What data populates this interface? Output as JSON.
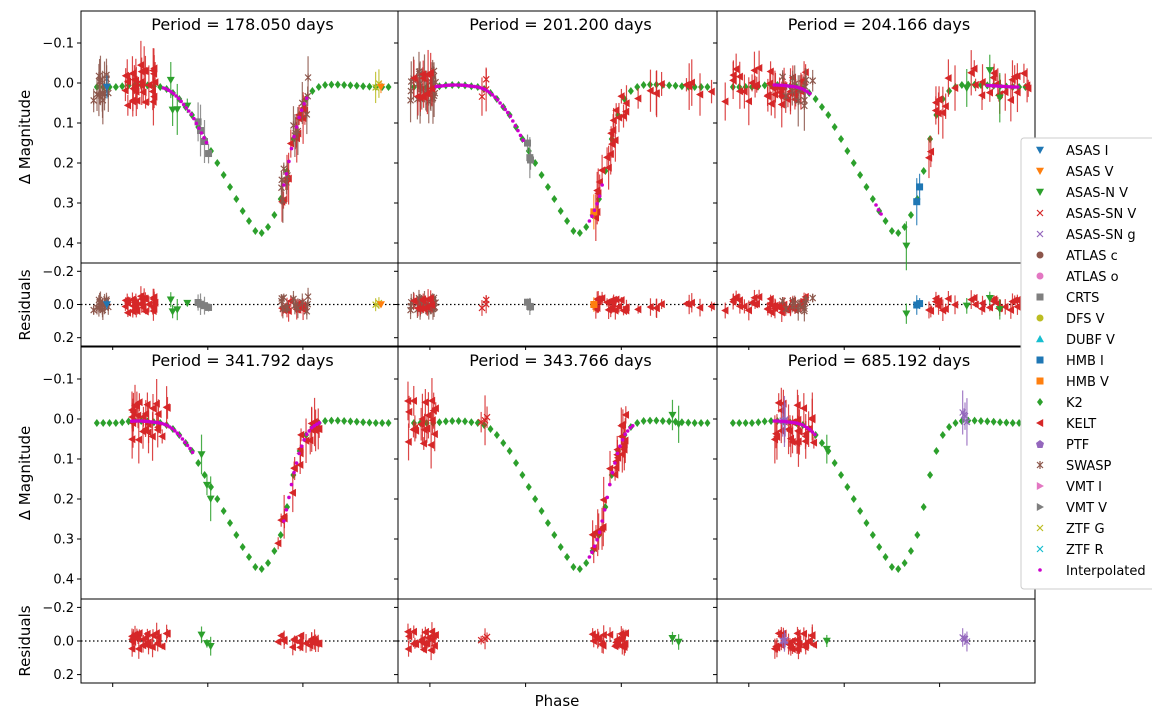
{
  "chart_data": {
    "type": "scatter",
    "xlabel": "Phase",
    "ylabel_main": "Δ Magnitude",
    "ylabel_residual": "Residuals",
    "main_yticks": [
      "−0.1",
      "0.0",
      "0.1",
      "0.2",
      "0.3",
      "0.4"
    ],
    "main_ytick_values": [
      -0.1,
      0.0,
      0.1,
      0.2,
      0.3,
      0.4
    ],
    "main_ylim": [
      0.45,
      -0.18
    ],
    "residual_yticks": [
      "−0.2",
      "0.0",
      "0.2"
    ],
    "residual_ytick_values": [
      -0.2,
      0.0,
      0.2
    ],
    "residual_ylim": [
      0.25,
      -0.25
    ],
    "xlim": [
      0.0,
      1.0
    ],
    "xtick_positions": [
      0.1,
      0.4,
      0.7
    ],
    "k2_template": {
      "phase": [
        0.05,
        0.07,
        0.09,
        0.11,
        0.13,
        0.15,
        0.17,
        0.19,
        0.21,
        0.23,
        0.25,
        0.27,
        0.29,
        0.31,
        0.33,
        0.35,
        0.37,
        0.39,
        0.41,
        0.43,
        0.45,
        0.47,
        0.49,
        0.51,
        0.53,
        0.55,
        0.57,
        0.59,
        0.61,
        0.63,
        0.65,
        0.67,
        0.69,
        0.71,
        0.73,
        0.75,
        0.77,
        0.79,
        0.81,
        0.83,
        0.85,
        0.87,
        0.89,
        0.91,
        0.93,
        0.95,
        0.97
      ],
      "mag": [
        0.01,
        0.01,
        0.01,
        0.01,
        0.008,
        0.006,
        0.005,
        0.005,
        0.006,
        0.008,
        0.01,
        0.015,
        0.025,
        0.04,
        0.06,
        0.08,
        0.11,
        0.14,
        0.17,
        0.2,
        0.23,
        0.26,
        0.29,
        0.32,
        0.345,
        0.37,
        0.375,
        0.36,
        0.33,
        0.29,
        0.22,
        0.14,
        0.08,
        0.04,
        0.02,
        0.01,
        0.005,
        0.004,
        0.004,
        0.005,
        0.006,
        0.007,
        0.008,
        0.009,
        0.01,
        0.01,
        0.01
      ]
    },
    "panels": [
      {
        "title": "Period = 178.050 days",
        "k2_shift": 0.0
      },
      {
        "title": "Period = 201.200 days",
        "k2_shift": 0.0
      },
      {
        "title": "Period = 204.166 days",
        "k2_shift": 0.0
      },
      {
        "title": "Period = 341.792 days",
        "k2_shift": 0.0
      },
      {
        "title": "Period = 343.766 days",
        "k2_shift": 0.0
      },
      {
        "title": "Period = 685.192 days",
        "k2_shift": 0.0
      }
    ],
    "series": [
      {
        "name": "ASAS I",
        "color": "#1f77b4",
        "marker": "tri_down"
      },
      {
        "name": "ASAS V",
        "color": "#ff7f0e",
        "marker": "tri_down"
      },
      {
        "name": "ASAS-N V",
        "color": "#2ca02c",
        "marker": "tri_down"
      },
      {
        "name": "ASAS-SN V",
        "color": "#d62728",
        "marker": "x"
      },
      {
        "name": "ASAS-SN g",
        "color": "#9467bd",
        "marker": "x"
      },
      {
        "name": "ATLAS c",
        "color": "#8c564b",
        "marker": "circle"
      },
      {
        "name": "ATLAS o",
        "color": "#e377c2",
        "marker": "circle"
      },
      {
        "name": "CRTS",
        "color": "#7f7f7f",
        "marker": "square"
      },
      {
        "name": "DFS V",
        "color": "#bcbd22",
        "marker": "circle"
      },
      {
        "name": "DUBF V",
        "color": "#17becf",
        "marker": "tri_up"
      },
      {
        "name": "HMB I",
        "color": "#1f77b4",
        "marker": "square"
      },
      {
        "name": "HMB V",
        "color": "#ff7f0e",
        "marker": "square"
      },
      {
        "name": "K2",
        "color": "#2ca02c",
        "marker": "diamond"
      },
      {
        "name": "KELT",
        "color": "#d62728",
        "marker": "tri_left"
      },
      {
        "name": "PTF",
        "color": "#9467bd",
        "marker": "pentagon"
      },
      {
        "name": "SWASP",
        "color": "#8c564b",
        "marker": "star"
      },
      {
        "name": "VMT I",
        "color": "#e377c2",
        "marker": "tri_right"
      },
      {
        "name": "VMT V",
        "color": "#7f7f7f",
        "marker": "tri_right"
      },
      {
        "name": "ZTF G",
        "color": "#bcbd22",
        "marker": "x"
      },
      {
        "name": "ZTF R",
        "color": "#17becf",
        "marker": "x"
      },
      {
        "name": "Interpolated",
        "color": "#cc00cc",
        "marker": "dot"
      }
    ]
  }
}
